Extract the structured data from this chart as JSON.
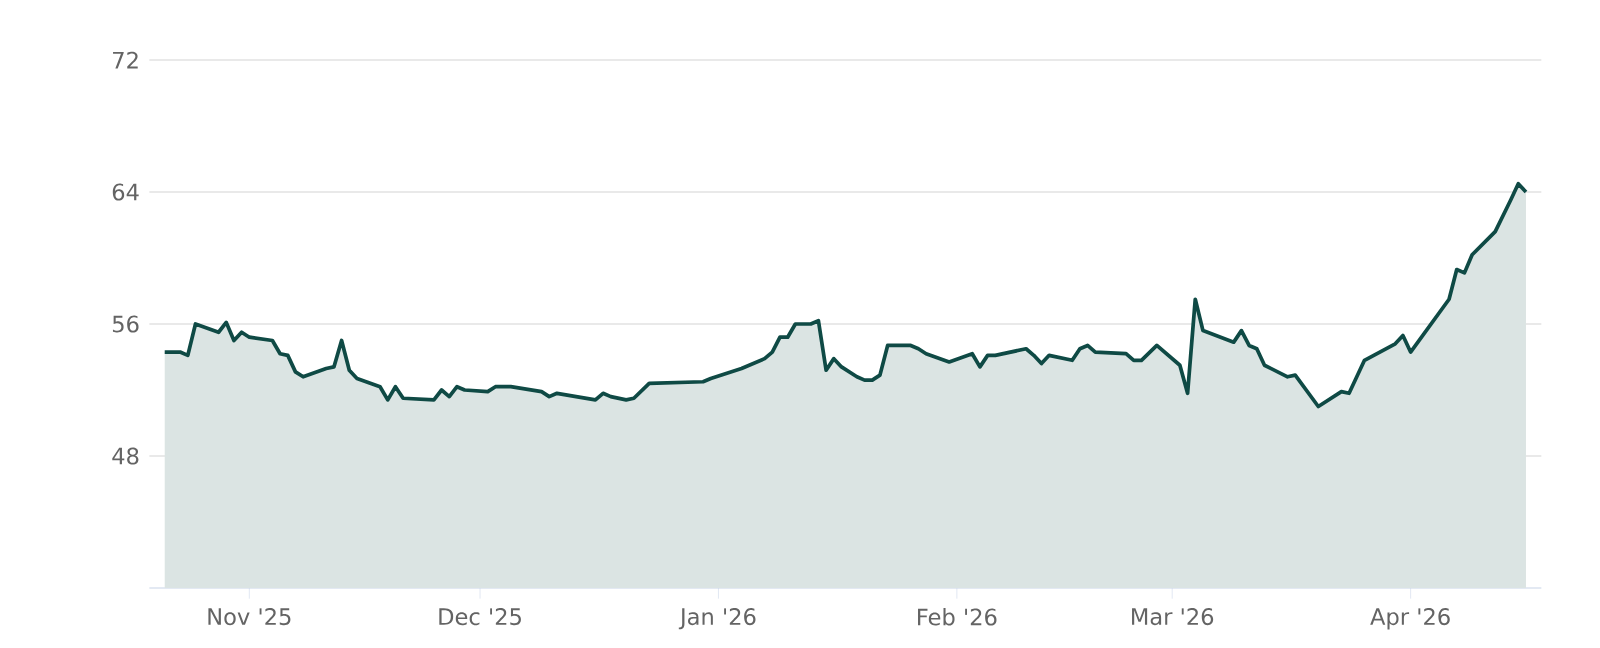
{
  "chart_data": {
    "type": "area",
    "x": [
      "2025-10-21",
      "2025-10-23",
      "2025-10-24",
      "2025-10-25",
      "2025-10-28",
      "2025-10-29",
      "2025-10-30",
      "2025-10-31",
      "2025-11-01",
      "2025-11-04",
      "2025-11-05",
      "2025-11-06",
      "2025-11-07",
      "2025-11-08",
      "2025-11-11",
      "2025-11-12",
      "2025-11-13",
      "2025-11-14",
      "2025-11-15",
      "2025-11-18",
      "2025-11-19",
      "2025-11-20",
      "2025-11-21",
      "2025-11-25",
      "2025-11-26",
      "2025-11-27",
      "2025-11-28",
      "2025-11-29",
      "2025-12-02",
      "2025-12-03",
      "2025-12-05",
      "2025-12-09",
      "2025-12-10",
      "2025-12-11",
      "2025-12-16",
      "2025-12-17",
      "2025-12-18",
      "2025-12-20",
      "2025-12-21",
      "2025-12-23",
      "2025-12-30",
      "2025-12-31",
      "2026-01-04",
      "2026-01-07",
      "2026-01-08",
      "2026-01-09",
      "2026-01-10",
      "2026-01-11",
      "2026-01-13",
      "2026-01-14",
      "2026-01-15",
      "2026-01-16",
      "2026-01-17",
      "2026-01-19",
      "2026-01-20",
      "2026-01-21",
      "2026-01-22",
      "2026-01-23",
      "2026-01-26",
      "2026-01-27",
      "2026-01-28",
      "2026-01-31",
      "2026-02-03",
      "2026-02-04",
      "2026-02-05",
      "2026-02-06",
      "2026-02-10",
      "2026-02-11",
      "2026-02-12",
      "2026-02-13",
      "2026-02-16",
      "2026-02-17",
      "2026-02-18",
      "2026-02-19",
      "2026-02-23",
      "2026-02-24",
      "2026-02-25",
      "2026-02-27",
      "2026-03-02",
      "2026-03-03",
      "2026-03-04",
      "2026-03-05",
      "2026-03-09",
      "2026-03-10",
      "2026-03-11",
      "2026-03-12",
      "2026-03-13",
      "2026-03-16",
      "2026-03-17",
      "2026-03-20",
      "2026-03-23",
      "2026-03-24",
      "2026-03-26",
      "2026-03-30",
      "2026-03-31",
      "2026-04-01",
      "2026-04-06",
      "2026-04-07",
      "2026-04-08",
      "2026-04-09",
      "2026-04-12",
      "2026-04-14",
      "2026-04-15",
      "2026-04-16"
    ],
    "series": [
      {
        "color": "#0f4a45",
        "values": [
          54.3,
          54.3,
          54.1,
          56.0,
          55.5,
          56.1,
          55.0,
          55.5,
          55.2,
          55.0,
          54.2,
          54.1,
          53.1,
          52.8,
          53.3,
          53.4,
          55.0,
          53.2,
          52.7,
          52.2,
          51.4,
          52.2,
          51.5,
          51.4,
          52.0,
          51.6,
          52.2,
          52.0,
          51.9,
          52.2,
          52.2,
          51.9,
          51.6,
          51.8,
          51.4,
          51.8,
          51.6,
          51.4,
          51.5,
          52.4,
          52.5,
          52.7,
          53.3,
          53.9,
          54.3,
          55.2,
          55.2,
          56.0,
          56.0,
          56.2,
          53.2,
          53.9,
          53.4,
          52.8,
          52.6,
          52.6,
          52.9,
          54.7,
          54.7,
          54.5,
          54.2,
          53.7,
          54.2,
          53.4,
          54.1,
          54.1,
          54.5,
          54.1,
          53.6,
          54.1,
          53.8,
          54.5,
          54.7,
          54.3,
          54.2,
          53.8,
          53.8,
          54.7,
          53.5,
          51.8,
          57.5,
          55.6,
          54.9,
          55.6,
          54.7,
          54.5,
          53.5,
          52.8,
          52.9,
          51.0,
          51.9,
          51.8,
          53.8,
          54.8,
          55.3,
          54.3,
          57.5,
          59.3,
          59.1,
          60.2,
          61.6,
          63.5,
          64.5,
          64.0
        ]
      }
    ],
    "xlim": [
      "2025-10-19",
      "2026-04-18"
    ],
    "xticks": [
      {
        "value": "2025-11-01",
        "label": "Nov '25"
      },
      {
        "value": "2025-12-01",
        "label": "Dec '25"
      },
      {
        "value": "2026-01-01",
        "label": "Jan '26"
      },
      {
        "value": "2026-02-01",
        "label": "Feb '26"
      },
      {
        "value": "2026-03-01",
        "label": "Mar '26"
      },
      {
        "value": "2026-04-01",
        "label": "Apr '26"
      }
    ],
    "ylim": [
      40,
      72
    ],
    "yticks": [
      48,
      56,
      64,
      72
    ],
    "grid": "y",
    "marker": "none",
    "line_style": "solid"
  }
}
